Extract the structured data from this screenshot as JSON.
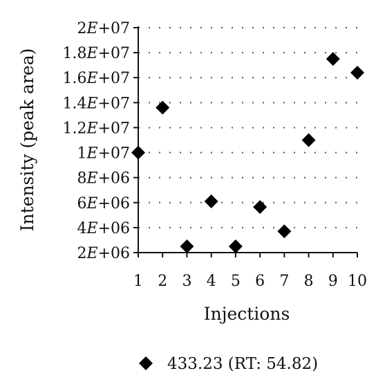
{
  "chart_data": {
    "type": "scatter",
    "title": "",
    "xlabel": "Injections",
    "ylabel": "Intensity (peak area)",
    "xlim": [
      1,
      10
    ],
    "ylim": [
      2000000,
      20000000
    ],
    "grid": "horizontal dotted",
    "legend_position": "bottom",
    "x_ticks": [
      "1",
      "2",
      "3",
      "4",
      "5",
      "6",
      "7",
      "8",
      "9",
      "10"
    ],
    "y_ticks": [
      {
        "value": 2000000,
        "label": "2E+06"
      },
      {
        "value": 4000000,
        "label": "4E+06"
      },
      {
        "value": 6000000,
        "label": "6E+06"
      },
      {
        "value": 8000000,
        "label": "8E+06"
      },
      {
        "value": 10000000,
        "label": "1E+07"
      },
      {
        "value": 12000000,
        "label": "1.2E+07"
      },
      {
        "value": 14000000,
        "label": "1.4E+07"
      },
      {
        "value": 16000000,
        "label": "1.6E+07"
      },
      {
        "value": 18000000,
        "label": "1.8E+07"
      },
      {
        "value": 20000000,
        "label": "2E+07"
      }
    ],
    "series": [
      {
        "name": "433.23 (RT: 54.82)",
        "color": "#000000",
        "marker": "diamond",
        "points": [
          {
            "x": 1,
            "y": 10000000
          },
          {
            "x": 2,
            "y": 13600000
          },
          {
            "x": 3,
            "y": 2500000
          },
          {
            "x": 4,
            "y": 6100000
          },
          {
            "x": 5,
            "y": 2500000
          },
          {
            "x": 6,
            "y": 5650000
          },
          {
            "x": 7,
            "y": 3700000
          },
          {
            "x": 8,
            "y": 11000000
          },
          {
            "x": 9,
            "y": 17500000
          },
          {
            "x": 10,
            "y": 16400000
          }
        ]
      }
    ]
  }
}
